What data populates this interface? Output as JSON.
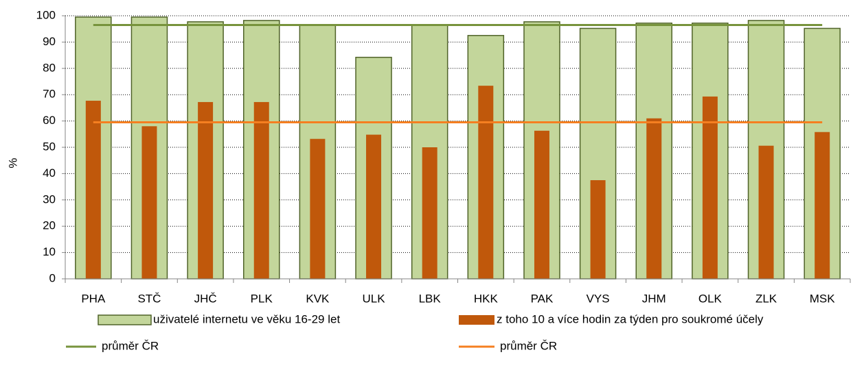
{
  "chart_data": {
    "type": "bar",
    "y_label": "%",
    "categories": [
      "PHA",
      "STČ",
      "JHČ",
      "PLK",
      "KVK",
      "ULK",
      "LBK",
      "HKK",
      "PAK",
      "VYS",
      "JHM",
      "OLK",
      "ZLK",
      "MSK"
    ],
    "series": [
      {
        "name": "uživatelé internetu ve věku 16-29 let",
        "type": "bar",
        "color": "#c3d69b",
        "edge": "#4f6228",
        "values": [
          99.5,
          99.5,
          97.7,
          98.2,
          96.5,
          84.2,
          96.5,
          92.5,
          97.7,
          95.2,
          97.2,
          97.2,
          98.2,
          95.2
        ]
      },
      {
        "name": "z toho 10 a více hodin za týden pro soukromé účely",
        "type": "bar",
        "color": "#c0580b",
        "values": [
          67.7,
          58,
          67.2,
          67.2,
          53.2,
          54.8,
          50,
          73.4,
          56.3,
          37.5,
          61,
          69.3,
          50.6,
          55.8
        ]
      },
      {
        "name": "průměr ČR",
        "type": "line",
        "color": "#77933c",
        "values": [
          96.5,
          96.5,
          96.5,
          96.5,
          96.5,
          96.5,
          96.5,
          96.5,
          96.5,
          96.5,
          96.5,
          96.5,
          96.5,
          96.5
        ]
      },
      {
        "name": "průměr ČR",
        "type": "line",
        "color": "#f57f20",
        "values": [
          59.5,
          59.5,
          59.5,
          59.5,
          59.5,
          59.5,
          59.5,
          59.5,
          59.5,
          59.5,
          59.5,
          59.5,
          59.5,
          59.5
        ]
      }
    ],
    "ylim": [
      0,
      100
    ],
    "yticks": [
      0,
      10,
      20,
      30,
      40,
      50,
      60,
      70,
      80,
      90,
      100
    ],
    "grid": true
  }
}
